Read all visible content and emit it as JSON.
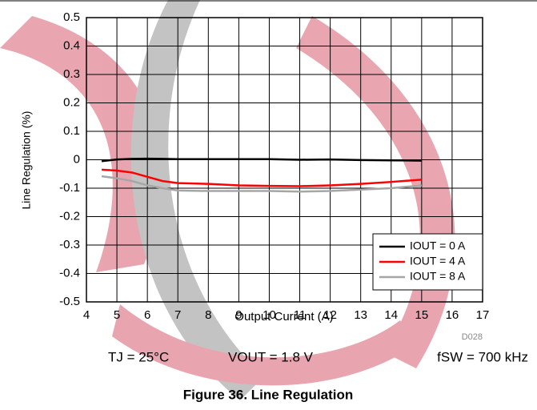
{
  "chart_data": {
    "type": "line",
    "title": "Figure 36. Line Regulation",
    "xlabel": "Output Current (A)",
    "ylabel": "Line Regulation (%)",
    "annotations": [
      "TJ = 25°C",
      "VOUT = 1.8 V",
      "fSW = 700 kHz",
      "D028"
    ],
    "x": [
      4.5,
      5,
      5.5,
      6,
      6.5,
      7,
      8,
      9,
      10,
      11,
      12,
      13,
      14,
      15
    ],
    "series": [
      {
        "name": "IOUT = 0 A",
        "color": "#000000",
        "values": [
          -0.005,
          0.001,
          0.003,
          0.004,
          0.003,
          0.002,
          0.002,
          0.002,
          0.002,
          0.0,
          0.001,
          -0.001,
          -0.002,
          -0.003
        ]
      },
      {
        "name": "IOUT = 4 A",
        "color": "#ff0000",
        "values": [
          -0.035,
          -0.038,
          -0.045,
          -0.06,
          -0.075,
          -0.082,
          -0.085,
          -0.09,
          -0.092,
          -0.093,
          -0.09,
          -0.085,
          -0.078,
          -0.07
        ]
      },
      {
        "name": "IOUT = 8 A",
        "color": "#a6a6a6",
        "values": [
          -0.058,
          -0.065,
          -0.075,
          -0.09,
          -0.1,
          -0.108,
          -0.11,
          -0.11,
          -0.11,
          -0.112,
          -0.11,
          -0.105,
          -0.1,
          -0.09
        ]
      }
    ],
    "xlim": [
      4,
      17
    ],
    "xticks": [
      4,
      5,
      6,
      7,
      8,
      9,
      10,
      11,
      12,
      13,
      14,
      15,
      16,
      17
    ],
    "ylim": [
      -0.5,
      0.5
    ],
    "yticks": [
      0.5,
      0.4,
      0.3,
      0.2,
      0.1,
      0,
      -0.1,
      -0.2,
      -0.3,
      -0.4,
      -0.5
    ],
    "grid": true,
    "legend": "lower right"
  }
}
